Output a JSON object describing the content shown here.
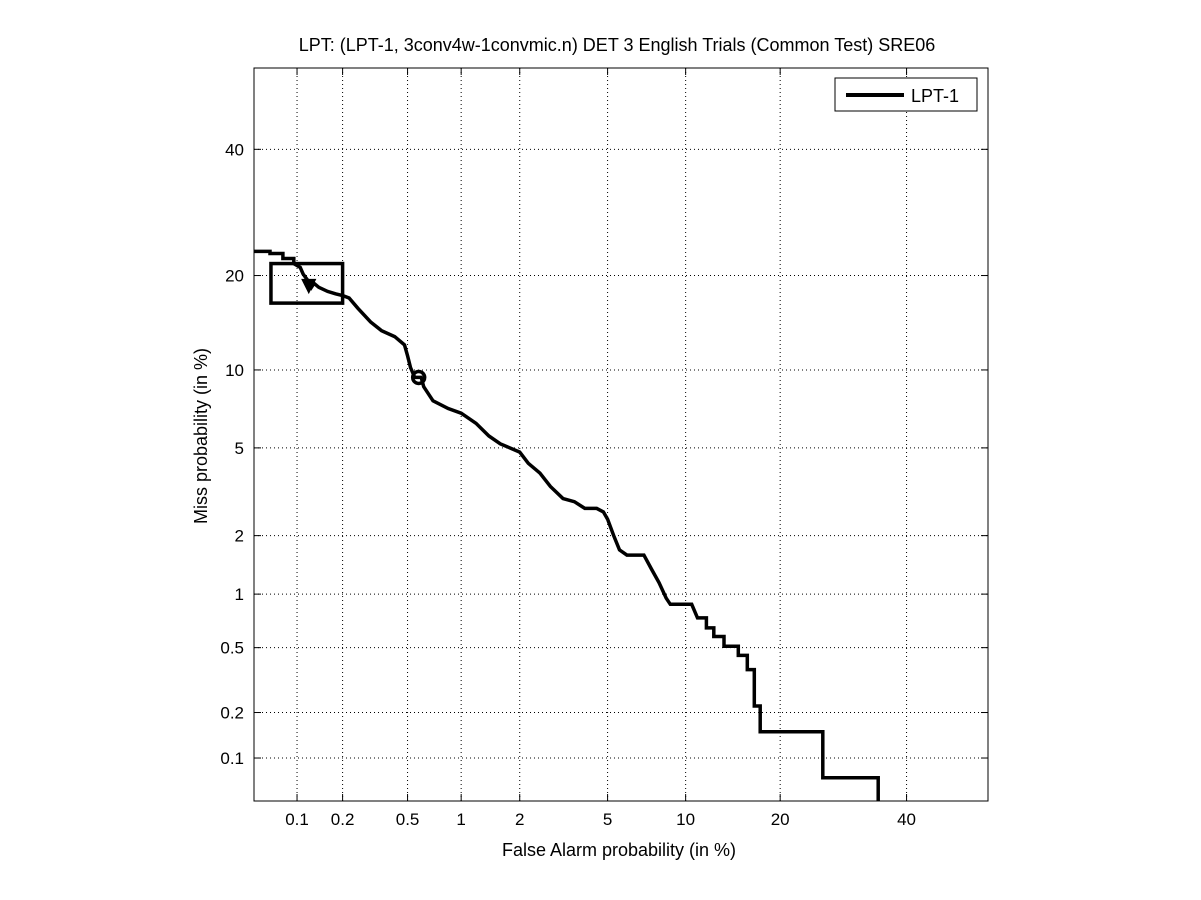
{
  "chart_data": {
    "type": "line",
    "title": "LPT: (LPT-1, 3conv4w-1convmic.n) DET 3 English Trials (Common Test) SRE06",
    "xlabel": "False Alarm probability (in %)",
    "ylabel": "Miss probability (in %)",
    "xscale": "probit",
    "yscale": "probit",
    "xlim": [
      0.05,
      55
    ],
    "ylim": [
      0.05,
      55
    ],
    "grid": true,
    "legend_position": "top-right",
    "x_ticks": [
      0.1,
      0.2,
      0.5,
      1,
      2,
      5,
      10,
      20,
      40
    ],
    "x_tick_labels": [
      "0.1",
      "0.2",
      "0.5",
      "1",
      "2",
      "5",
      "10",
      "20",
      "40"
    ],
    "y_ticks": [
      0.1,
      0.2,
      0.5,
      1,
      2,
      5,
      10,
      20,
      40
    ],
    "y_tick_labels": [
      "0.1",
      "0.2",
      "0.5",
      "1",
      "2",
      "5",
      "10",
      "20",
      "40"
    ],
    "series": [
      {
        "name": "LPT-1",
        "color": "#000000",
        "points": [
          [
            0.05,
            23.3
          ],
          [
            0.065,
            23.3
          ],
          [
            0.065,
            23.0
          ],
          [
            0.08,
            23.0
          ],
          [
            0.08,
            22.3
          ],
          [
            0.095,
            22.3
          ],
          [
            0.095,
            21.6
          ],
          [
            0.105,
            21.1
          ],
          [
            0.11,
            20.2
          ],
          [
            0.12,
            19.2
          ],
          [
            0.125,
            18.5
          ],
          [
            0.13,
            19.0
          ],
          [
            0.14,
            18.5
          ],
          [
            0.16,
            18.0
          ],
          [
            0.18,
            17.7
          ],
          [
            0.2,
            17.5
          ],
          [
            0.22,
            17.2
          ],
          [
            0.25,
            16.0
          ],
          [
            0.3,
            14.5
          ],
          [
            0.35,
            13.6
          ],
          [
            0.42,
            13.0
          ],
          [
            0.48,
            12.2
          ],
          [
            0.5,
            11.2
          ],
          [
            0.52,
            10.2
          ],
          [
            0.55,
            9.4
          ],
          [
            0.6,
            9.4
          ],
          [
            0.62,
            8.7
          ],
          [
            0.7,
            7.7
          ],
          [
            0.85,
            7.2
          ],
          [
            1.0,
            6.9
          ],
          [
            1.2,
            6.3
          ],
          [
            1.4,
            5.6
          ],
          [
            1.6,
            5.2
          ],
          [
            2.0,
            4.8
          ],
          [
            2.2,
            4.3
          ],
          [
            2.5,
            3.9
          ],
          [
            2.8,
            3.4
          ],
          [
            3.2,
            3.0
          ],
          [
            3.6,
            2.9
          ],
          [
            4.0,
            2.7
          ],
          [
            4.5,
            2.7
          ],
          [
            4.8,
            2.6
          ],
          [
            5.0,
            2.4
          ],
          [
            5.3,
            2.0
          ],
          [
            5.6,
            1.7
          ],
          [
            6.0,
            1.6
          ],
          [
            7.0,
            1.6
          ],
          [
            7.5,
            1.35
          ],
          [
            8.0,
            1.15
          ],
          [
            8.5,
            0.95
          ],
          [
            8.8,
            0.88
          ],
          [
            10.5,
            0.88
          ],
          [
            11.0,
            0.74
          ],
          [
            11.8,
            0.74
          ],
          [
            11.8,
            0.65
          ],
          [
            12.5,
            0.65
          ],
          [
            12.5,
            0.58
          ],
          [
            13.5,
            0.58
          ],
          [
            13.5,
            0.51
          ],
          [
            15.0,
            0.51
          ],
          [
            15.0,
            0.45
          ],
          [
            16.0,
            0.45
          ],
          [
            16.0,
            0.37
          ],
          [
            16.8,
            0.37
          ],
          [
            16.8,
            0.22
          ],
          [
            17.5,
            0.22
          ],
          [
            17.5,
            0.15
          ],
          [
            26.0,
            0.15
          ],
          [
            26.0,
            0.073
          ],
          [
            35.0,
            0.073
          ],
          [
            35.0,
            0.05
          ]
        ],
        "markers": [
          {
            "x": 0.12,
            "y": 18.8,
            "shape": "triangle"
          },
          {
            "x": 0.58,
            "y": 9.4,
            "shape": "circle"
          }
        ],
        "confidence_box": {
          "x": [
            0.066,
            0.2
          ],
          "y": [
            16.6,
            21.6
          ]
        }
      }
    ]
  }
}
